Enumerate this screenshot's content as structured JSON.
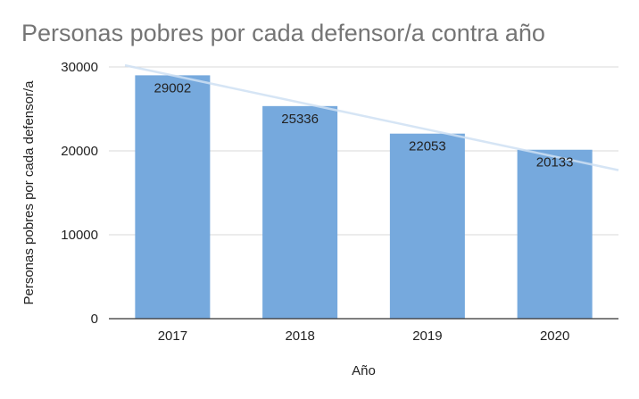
{
  "chart_data": {
    "type": "bar",
    "title": "Personas pobres por cada defensor/a contra año",
    "xlabel": "Año",
    "ylabel": "Personas pobres por cada defensor/a",
    "categories": [
      "2017",
      "2018",
      "2019",
      "2020"
    ],
    "values": [
      29002,
      25336,
      22053,
      20133
    ],
    "ylim": [
      0,
      30000
    ],
    "yticks": [
      "0",
      "10000",
      "20000",
      "30000"
    ],
    "trendline": {
      "start": 30200,
      "end": 17700
    },
    "bar_color": "#76a9dd",
    "trend_color": "#cfe0f3",
    "grid": true,
    "legend": "none"
  }
}
